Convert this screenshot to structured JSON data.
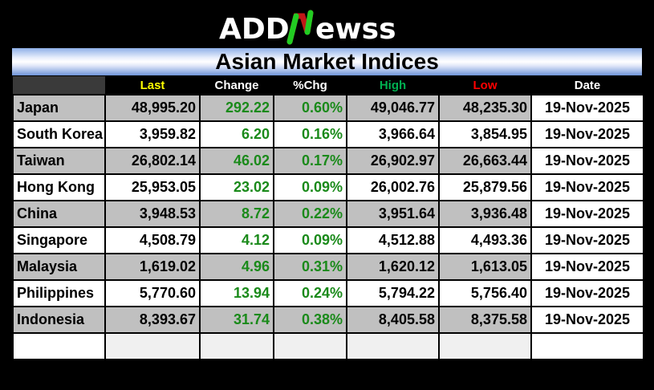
{
  "logo": {
    "text": "ADDNEWSS",
    "colors": {
      "up": "#22cc22",
      "down": "#c01818"
    }
  },
  "title": "Asian Market Indices",
  "columns": [
    {
      "label": "",
      "color": "#ffffff"
    },
    {
      "label": "Last",
      "color": "#ffff00"
    },
    {
      "label": "Change",
      "color": "#ffffff"
    },
    {
      "label": "%Chg",
      "color": "#ffffff"
    },
    {
      "label": "High",
      "color": "#00b050"
    },
    {
      "label": "Low",
      "color": "#ff0000"
    },
    {
      "label": "Date",
      "color": "#ffffff"
    }
  ],
  "rows": [
    {
      "name": "Japan",
      "last": "48,995.20",
      "change": "292.22",
      "pct": "0.60%",
      "high": "49,046.77",
      "low": "48,235.30",
      "date": "19-Nov-2025"
    },
    {
      "name": "South Korea",
      "last": "3,959.82",
      "change": "6.20",
      "pct": "0.16%",
      "high": "3,966.64",
      "low": "3,854.95",
      "date": "19-Nov-2025"
    },
    {
      "name": "Taiwan",
      "last": "26,802.14",
      "change": "46.02",
      "pct": "0.17%",
      "high": "26,902.97",
      "low": "26,663.44",
      "date": "19-Nov-2025"
    },
    {
      "name": "Hong Kong",
      "last": "25,953.05",
      "change": "23.02",
      "pct": "0.09%",
      "high": "26,002.76",
      "low": "25,879.56",
      "date": "19-Nov-2025"
    },
    {
      "name": "China",
      "last": "3,948.53",
      "change": "8.72",
      "pct": "0.22%",
      "high": "3,951.64",
      "low": "3,936.48",
      "date": "19-Nov-2025"
    },
    {
      "name": "Singapore",
      "last": "4,508.79",
      "change": "4.12",
      "pct": "0.09%",
      "high": "4,512.88",
      "low": "4,493.36",
      "date": "19-Nov-2025"
    },
    {
      "name": "Malaysia",
      "last": "1,619.02",
      "change": "4.96",
      "pct": "0.31%",
      "high": "1,620.12",
      "low": "1,613.05",
      "date": "19-Nov-2025"
    },
    {
      "name": "Philippines",
      "last": "5,770.60",
      "change": "13.94",
      "pct": "0.24%",
      "high": "5,794.22",
      "low": "5,756.40",
      "date": "19-Nov-2025"
    },
    {
      "name": "Indonesia",
      "last": "8,393.67",
      "change": "31.74",
      "pct": "0.38%",
      "high": "8,405.58",
      "low": "8,375.58",
      "date": "19-Nov-2025"
    }
  ]
}
